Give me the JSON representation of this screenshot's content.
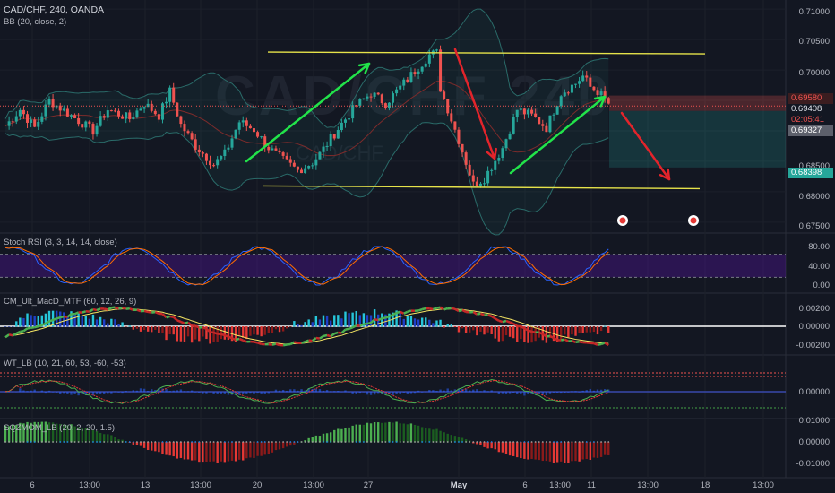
{
  "header": {
    "symbol_line": "CAD/CHF, 240, OANDA",
    "indicator_line": "BB (20, close, 2)"
  },
  "watermark": {
    "main": "CAD/CHF 240",
    "sub": "CAD/CHF"
  },
  "price_axis": {
    "ticks": [
      "0.71000",
      "0.70500",
      "0.70000",
      "0.68500",
      "0.68000",
      "0.67500"
    ],
    "tags": [
      {
        "text": "0.69580",
        "bg": "#3b1d20",
        "fg": "#ef5350"
      },
      {
        "text": "0.69408",
        "bg": "#131722",
        "fg": "#e0e3eb"
      },
      {
        "text": "02:05:41",
        "bg": "#131722",
        "fg": "#ef5350"
      },
      {
        "text": "0.69327",
        "bg": "#5d606b",
        "fg": "#ffffff"
      },
      {
        "text": "0.68398",
        "bg": "#26a69a",
        "fg": "#ffffff"
      }
    ]
  },
  "panes": {
    "stoch": {
      "title": "Stoch RSI (3, 3, 14, 14, close)",
      "ticks": [
        "80.00",
        "40.00",
        "0.00"
      ],
      "k_color": "#2962ff",
      "d_color": "#ff6d00",
      "band_color": "#4a148c"
    },
    "macd": {
      "title": "CM_Ult_MacD_MTF (60, 12, 26, 9)",
      "ticks": [
        "0.00200",
        "0.00000",
        "-0.00200"
      ]
    },
    "wt": {
      "title": "WT_LB (10, 21, 60, 53, -60, -53)",
      "ticks": [
        "0.00000"
      ]
    },
    "sqz": {
      "title": "SQZMOM_LB (20, 2, 20, 1.5)",
      "ticks": [
        "0.01000",
        "0.00000",
        "-0.01000"
      ]
    }
  },
  "time_axis": {
    "labels": [
      "6",
      "13:00",
      "13",
      "13:00",
      "20",
      "13:00",
      "27",
      "May",
      "6",
      "13:00",
      "11",
      "13:00",
      "18",
      "13:00"
    ]
  },
  "colors": {
    "bull": "#26a69a",
    "bear": "#ef5350",
    "channel": "#e6e34a",
    "arrow_up": "#22e34a",
    "arrow_down": "#e3242b",
    "bb": "#2a6b69",
    "basis": "#7d2b2b"
  },
  "chart_data": {
    "type": "candlestick",
    "bars": 156,
    "y_range": [
      0.6735,
      0.7115
    ],
    "anchors": [
      [
        0,
        0.6908
      ],
      [
        4,
        0.6935
      ],
      [
        8,
        0.6905
      ],
      [
        12,
        0.695
      ],
      [
        18,
        0.6925
      ],
      [
        24,
        0.69
      ],
      [
        28,
        0.6935
      ],
      [
        34,
        0.692
      ],
      [
        38,
        0.6945
      ],
      [
        42,
        0.6925
      ],
      [
        45,
        0.6965
      ],
      [
        48,
        0.691
      ],
      [
        52,
        0.6875
      ],
      [
        57,
        0.6845
      ],
      [
        60,
        0.6862
      ],
      [
        64,
        0.6915
      ],
      [
        68,
        0.6902
      ],
      [
        72,
        0.6872
      ],
      [
        76,
        0.6852
      ],
      [
        80,
        0.6835
      ],
      [
        84,
        0.6848
      ],
      [
        86,
        0.6862
      ],
      [
        92,
        0.6912
      ],
      [
        96,
        0.6942
      ],
      [
        100,
        0.6962
      ],
      [
        104,
        0.6945
      ],
      [
        110,
        0.6985
      ],
      [
        116,
        0.7025
      ],
      [
        118,
        0.7028
      ],
      [
        119,
        0.697
      ],
      [
        124,
        0.6885
      ],
      [
        128,
        0.6812
      ],
      [
        131,
        0.6822
      ],
      [
        136,
        0.6872
      ],
      [
        140,
        0.6935
      ],
      [
        144,
        0.6925
      ],
      [
        148,
        0.6905
      ],
      [
        152,
        0.6962
      ],
      [
        156,
        0.6978
      ],
      [
        158,
        0.699
      ],
      [
        160,
        0.6972
      ],
      [
        162,
        0.6965
      ],
      [
        166,
        0.6938
      ]
    ],
    "channel_upper": 0.7028,
    "channel_lower": 0.6808,
    "position": {
      "entry": 0.69327,
      "stop": 0.6958,
      "target": 0.68398
    }
  }
}
